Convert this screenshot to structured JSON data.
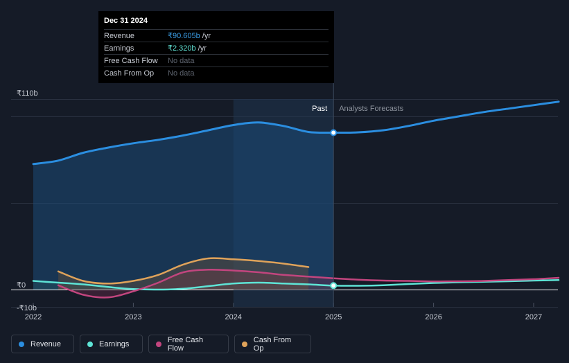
{
  "tooltip": {
    "date": "Dec 31 2024",
    "rows": [
      {
        "label": "Revenue",
        "value": "₹90.605b",
        "unit": "/yr"
      },
      {
        "label": "Earnings",
        "value": "₹2.320b",
        "unit": "/yr"
      },
      {
        "label": "Free Cash Flow",
        "value": "No data",
        "unit": ""
      },
      {
        "label": "Cash From Op",
        "value": "No data",
        "unit": ""
      }
    ]
  },
  "markers": {
    "past": "Past",
    "forecast": "Analysts Forecasts"
  },
  "legend": [
    {
      "label": "Revenue",
      "color": "#2b8ee0"
    },
    {
      "label": "Earnings",
      "color": "#5ee4d6"
    },
    {
      "label": "Free Cash Flow",
      "color": "#c2457e"
    },
    {
      "label": "Cash From Op",
      "color": "#e0a35a"
    }
  ],
  "chart_data": {
    "type": "line",
    "title": "",
    "xlabel": "",
    "ylabel": "",
    "x_ticks": [
      "2022",
      "2023",
      "2024",
      "2025",
      "2026",
      "2027"
    ],
    "y_ticks": [
      "₹110b",
      "₹0",
      "-₹10b"
    ],
    "ylim": [
      -10,
      110
    ],
    "xlim": [
      2022.0,
      2027.25
    ],
    "past_end": 2025.0,
    "highlight_start": 2024.0,
    "grid": true,
    "series": [
      {
        "name": "Revenue",
        "color": "#2b8ee0",
        "x": [
          2022.0,
          2022.25,
          2022.5,
          2022.75,
          2023.0,
          2023.25,
          2023.5,
          2023.75,
          2024.0,
          2024.25,
          2024.5,
          2024.75,
          2025.0,
          2025.25,
          2025.5,
          2025.75,
          2026.0,
          2026.25,
          2026.5,
          2026.75,
          2027.0,
          2027.25
        ],
        "y": [
          72.5,
          74.5,
          79,
          82,
          84.5,
          86.5,
          89,
          92,
          95,
          96.5,
          94.5,
          91,
          90.6,
          90.8,
          92,
          94.5,
          97.5,
          100,
          102.5,
          104.5,
          106.5,
          108.5
        ]
      },
      {
        "name": "Earnings",
        "color": "#5ee4d6",
        "x": [
          2022.0,
          2022.25,
          2022.5,
          2022.75,
          2023.0,
          2023.25,
          2023.5,
          2023.75,
          2024.0,
          2024.25,
          2024.5,
          2024.75,
          2025.0,
          2025.25,
          2025.5,
          2025.75,
          2026.0,
          2026.25,
          2026.5,
          2026.75,
          2027.0,
          2027.25
        ],
        "y": [
          5,
          4,
          3,
          1.5,
          0.3,
          0,
          0.5,
          2,
          3.5,
          4,
          3.5,
          3,
          2.3,
          2.2,
          2.5,
          3.2,
          3.8,
          4.2,
          4.5,
          4.8,
          5.2,
          5.5
        ]
      },
      {
        "name": "Free Cash Flow",
        "color": "#c2457e",
        "x": [
          2022.25,
          2022.5,
          2022.75,
          2023.0,
          2023.25,
          2023.5,
          2023.75,
          2024.0,
          2024.25,
          2024.5,
          2024.75,
          2025.0,
          2025.25,
          2025.5,
          2025.75,
          2026.0,
          2026.25,
          2026.5,
          2026.75,
          2027.0,
          2027.25
        ],
        "y": [
          2.5,
          -3,
          -4.5,
          -1,
          4,
          10,
          11.5,
          11,
          10,
          8.5,
          7.5,
          6.5,
          5.7,
          5.2,
          5,
          4.7,
          4.8,
          5,
          5.5,
          6,
          6.8
        ]
      },
      {
        "name": "Cash From Op",
        "color": "#e0a35a",
        "x": [
          2022.25,
          2022.5,
          2022.75,
          2023.0,
          2023.25,
          2023.5,
          2023.75,
          2024.0,
          2024.25,
          2024.5,
          2024.75
        ],
        "y": [
          10.5,
          5,
          3.5,
          5,
          8.5,
          14.5,
          18,
          17.5,
          16.5,
          15,
          13
        ]
      }
    ]
  }
}
